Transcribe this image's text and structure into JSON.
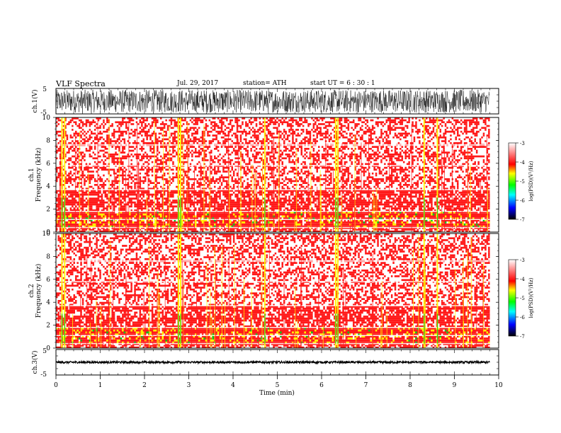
{
  "header": {
    "title": "VLF  Spectra",
    "date": "Jul.  29, 2017",
    "station": "station= ATH",
    "start": "start  UT  =   6  : 30 : 1"
  },
  "colors": {
    "background": "#ffffff",
    "spectrogram_high": "#ff1a1a",
    "spectrogram_mid": "#ffff00",
    "spectrogram_low": "#00c020",
    "trace": "#000000"
  },
  "chart_data": [
    {
      "type": "line",
      "name": "ch1-waveform",
      "ylabel": "ch.1(V)",
      "ylim": [
        -5,
        5
      ],
      "yticks": [
        "5",
        "-5"
      ],
      "xlim": [
        0,
        10
      ],
      "amplitude_range": [
        -4.5,
        4.5
      ]
    },
    {
      "type": "heatmap",
      "name": "ch1-spectrogram",
      "ylabel": "ch.1\nFrequency (kHz)",
      "ylabel_lines": [
        "ch.1",
        "Frequency  (kHz)"
      ],
      "xlim": [
        0,
        9.8
      ],
      "ylim": [
        0,
        10
      ],
      "yticks": [
        "0",
        "2",
        "4",
        "6",
        "8",
        "10"
      ],
      "colorbar": {
        "label": "log(PSD)(V²/Hz)",
        "range": [
          -7,
          -3
        ],
        "ticks": [
          "-3",
          "-4",
          "-5",
          "-6",
          "-7"
        ],
        "stops": [
          "#000000",
          "#0000ff",
          "#00ffff",
          "#00ff00",
          "#ffff00",
          "#ff0000",
          "#ffffff"
        ]
      },
      "bands": [
        {
          "from": 0,
          "to": 0.4,
          "level": "high"
        },
        {
          "from": 0.4,
          "to": 1.8,
          "level": "very-high"
        },
        {
          "from": 1.8,
          "to": 3.7,
          "level": "high"
        },
        {
          "from": 3.7,
          "to": 10,
          "level": "medium"
        }
      ],
      "vertical_bursts_min": [
        0.12,
        0.18,
        2.75,
        2.8,
        4.7,
        6.3,
        6.35,
        8.3,
        8.6
      ]
    },
    {
      "type": "heatmap",
      "name": "ch2-spectrogram",
      "ylabel": "ch.2\nFrequency (kHz)",
      "ylabel_lines": [
        "ch.2",
        "Frequency  (kHz)"
      ],
      "xlim": [
        0,
        9.8
      ],
      "ylim": [
        0,
        10
      ],
      "yticks": [
        "0",
        "2",
        "4",
        "6",
        "8",
        "10"
      ],
      "colorbar": {
        "label": "log(PSD)(V²/Hz)",
        "range": [
          -7,
          -3
        ],
        "ticks": [
          "-3",
          "-4",
          "-5",
          "-6",
          "-7"
        ],
        "stops": [
          "#000000",
          "#0000ff",
          "#00ffff",
          "#00ff00",
          "#ffff00",
          "#ff0000",
          "#ffffff"
        ]
      },
      "bands": [
        {
          "from": 0,
          "to": 0.4,
          "level": "high"
        },
        {
          "from": 0.4,
          "to": 1.8,
          "level": "very-high"
        },
        {
          "from": 1.8,
          "to": 3.7,
          "level": "high"
        },
        {
          "from": 3.7,
          "to": 10,
          "level": "medium"
        }
      ],
      "vertical_bursts_min": [
        0.12,
        0.18,
        2.75,
        2.8,
        4.7,
        6.3,
        6.35,
        8.3,
        8.6
      ]
    },
    {
      "type": "line",
      "name": "ch3-waveform",
      "ylabel": "ch.3(V)",
      "ylim": [
        -5,
        5
      ],
      "yticks": [
        "5",
        "-5"
      ],
      "xlim": [
        0,
        10
      ],
      "xlabel": "Time  (min)",
      "xticks": [
        "0",
        "1",
        "2",
        "3",
        "4",
        "5",
        "6",
        "7",
        "8",
        "9",
        "10"
      ],
      "baseline": 0,
      "amplitude_range": [
        -0.4,
        0.4
      ]
    }
  ]
}
